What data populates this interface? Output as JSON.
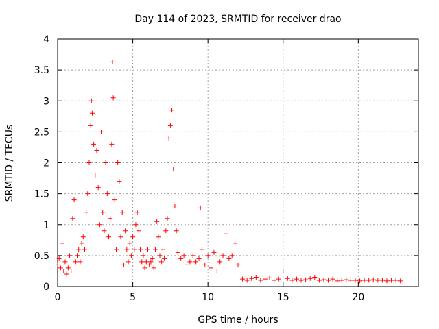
{
  "chart_data": {
    "type": "scatter",
    "title": "Day 114 of 2023, SRMTID for receiver drao",
    "xlabel": "GPS time / hours",
    "ylabel": "SRMTID / TECUs",
    "xlim": [
      0,
      24
    ],
    "ylim": [
      0,
      4
    ],
    "xticks": [
      0,
      5,
      10,
      15,
      20
    ],
    "yticks": [
      0,
      0.5,
      1,
      1.5,
      2,
      2.5,
      3,
      3.5,
      4
    ],
    "grid": true,
    "marker": "+",
    "color": "#ff0000",
    "series": [
      {
        "name": "SRMTID",
        "x": [
          0.0,
          0.1,
          0.2,
          0.3,
          0.4,
          0.5,
          0.6,
          0.7,
          0.8,
          0.9,
          1.0,
          1.1,
          1.2,
          1.3,
          1.4,
          1.5,
          1.6,
          1.7,
          1.8,
          1.9,
          2.0,
          2.1,
          2.2,
          2.25,
          2.3,
          2.4,
          2.5,
          2.6,
          2.7,
          2.8,
          2.9,
          3.0,
          3.1,
          3.2,
          3.3,
          3.4,
          3.5,
          3.6,
          3.65,
          3.7,
          3.8,
          3.9,
          4.0,
          4.1,
          4.2,
          4.3,
          4.4,
          4.5,
          4.6,
          4.7,
          4.8,
          4.9,
          5.0,
          5.1,
          5.2,
          5.3,
          5.4,
          5.5,
          5.6,
          5.7,
          5.8,
          5.9,
          6.0,
          6.1,
          6.2,
          6.3,
          6.4,
          6.5,
          6.6,
          6.7,
          6.8,
          6.9,
          7.0,
          7.1,
          7.2,
          7.3,
          7.4,
          7.5,
          7.6,
          7.7,
          7.8,
          7.9,
          8.0,
          8.2,
          8.4,
          8.6,
          8.8,
          9.0,
          9.2,
          9.4,
          9.5,
          9.6,
          9.8,
          10.0,
          10.2,
          10.4,
          10.6,
          10.8,
          11.0,
          11.2,
          11.4,
          11.6,
          11.8,
          12.0,
          12.3,
          12.6,
          12.9,
          13.2,
          13.5,
          13.8,
          14.1,
          14.4,
          14.7,
          15.0,
          15.3,
          15.6,
          15.9,
          16.2,
          16.5,
          16.8,
          17.1,
          17.4,
          17.7,
          18.0,
          18.3,
          18.6,
          18.9,
          19.2,
          19.5,
          19.8,
          20.1,
          20.4,
          20.7,
          21.0,
          21.3,
          21.6,
          21.9,
          22.2,
          22.5,
          22.8
        ],
        "y": [
          0.35,
          0.45,
          0.3,
          0.7,
          0.25,
          0.4,
          0.2,
          0.3,
          0.5,
          0.25,
          1.1,
          1.4,
          0.4,
          0.5,
          0.6,
          0.4,
          0.7,
          0.8,
          0.6,
          1.2,
          1.5,
          2.0,
          2.6,
          3.0,
          2.8,
          2.3,
          1.8,
          2.2,
          1.6,
          1.0,
          2.5,
          1.2,
          0.9,
          2.0,
          1.5,
          0.8,
          1.1,
          2.3,
          3.63,
          3.05,
          1.4,
          0.6,
          2.0,
          1.7,
          0.8,
          1.2,
          0.35,
          0.9,
          0.6,
          0.4,
          0.7,
          0.5,
          0.8,
          0.6,
          1.0,
          1.2,
          0.9,
          0.6,
          0.4,
          0.5,
          0.3,
          0.4,
          0.6,
          0.35,
          0.4,
          0.45,
          0.3,
          0.6,
          1.05,
          0.8,
          0.5,
          0.4,
          0.6,
          0.45,
          0.9,
          1.1,
          2.4,
          2.6,
          2.85,
          1.9,
          1.3,
          0.9,
          0.55,
          0.45,
          0.5,
          0.35,
          0.4,
          0.5,
          0.4,
          0.45,
          1.27,
          0.6,
          0.35,
          0.5,
          0.3,
          0.55,
          0.25,
          0.4,
          0.5,
          0.85,
          0.45,
          0.5,
          0.7,
          0.35,
          0.12,
          0.1,
          0.13,
          0.15,
          0.1,
          0.12,
          0.14,
          0.1,
          0.12,
          0.25,
          0.13,
          0.1,
          0.12,
          0.1,
          0.11,
          0.13,
          0.15,
          0.1,
          0.11,
          0.1,
          0.12,
          0.09,
          0.1,
          0.11,
          0.1,
          0.1,
          0.09,
          0.1,
          0.1,
          0.11,
          0.1,
          0.1,
          0.09,
          0.1,
          0.1,
          0.09
        ]
      }
    ]
  }
}
